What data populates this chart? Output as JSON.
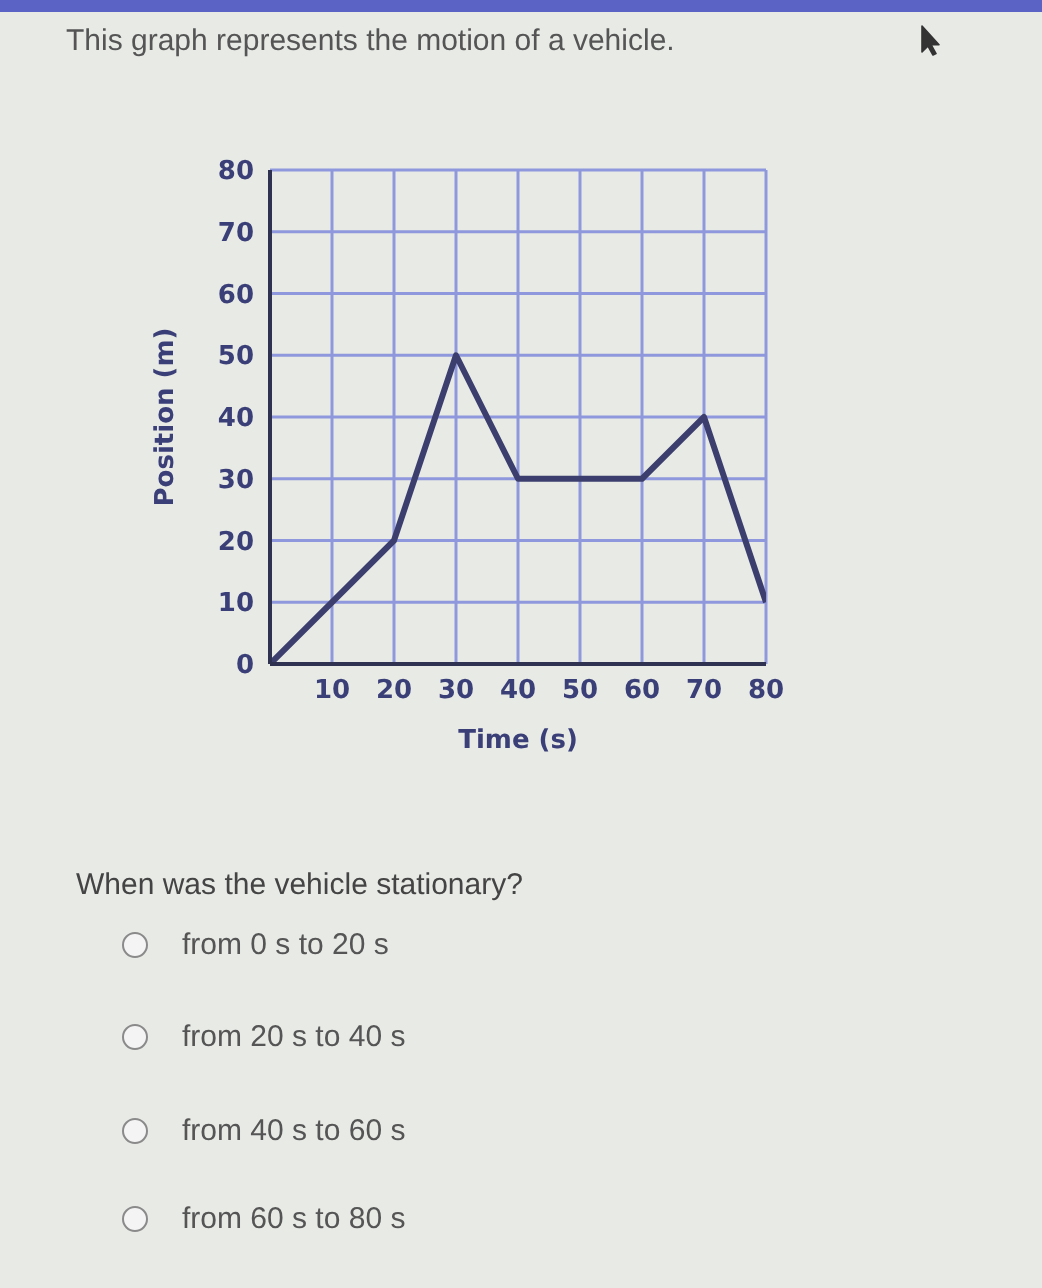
{
  "chart_data": {
    "type": "line",
    "title": "This graph represents the motion of a vehicle.",
    "xlabel": "Time (s)",
    "ylabel": "Position (m)",
    "x": [
      0,
      10,
      20,
      30,
      40,
      60,
      70,
      80
    ],
    "values": [
      0,
      10,
      20,
      50,
      30,
      30,
      40,
      10
    ],
    "color": "#3c3f6e",
    "xlim": [
      0,
      80
    ],
    "ylim": [
      0,
      80
    ],
    "xticks": [
      10,
      20,
      30,
      40,
      50,
      60,
      70,
      80
    ],
    "yticks": [
      0,
      10,
      20,
      30,
      40,
      50,
      60,
      70,
      80
    ],
    "grid": true,
    "marker": "none",
    "annotations": [
      "When was the vehicle stationary?",
      "from 0 s to 20 s",
      "from 20 s to 40 s",
      "from 40 s to 60 s",
      "from 60 s to 80 s"
    ]
  }
}
